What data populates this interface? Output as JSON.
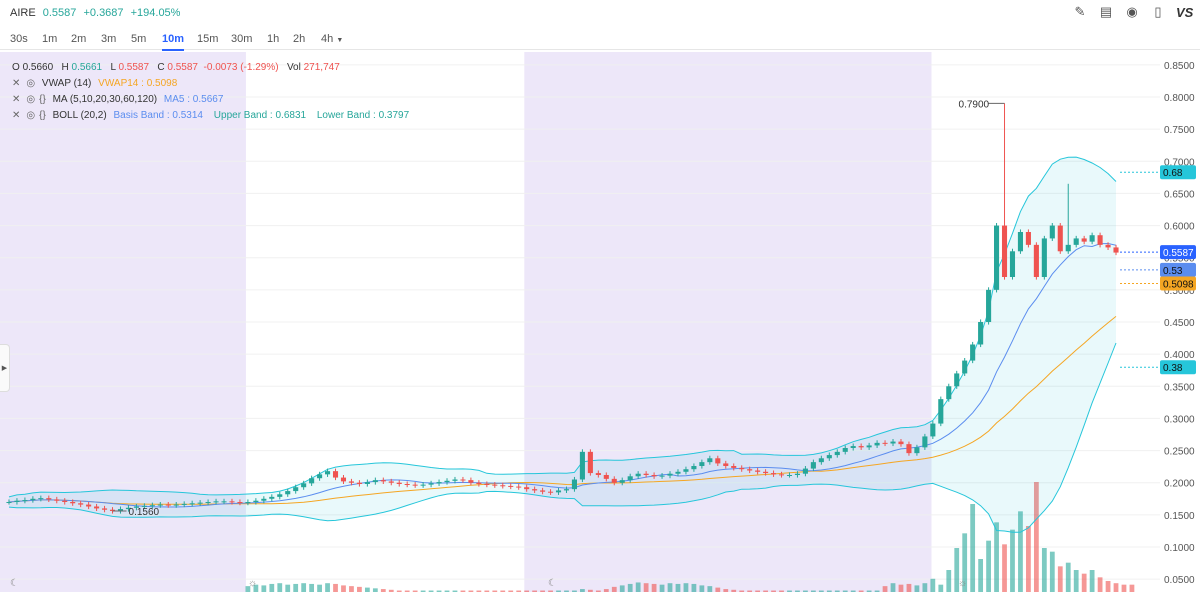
{
  "header": {
    "symbol": "AIRE",
    "price": "0.5587",
    "change": "+0.3687",
    "change_pct": "+194.05%",
    "icons": [
      "pencil-icon",
      "chart-icon",
      "idea-bulb-icon",
      "candles-icon",
      "compare-vs-icon"
    ],
    "vs_label": "VS"
  },
  "intervals": [
    "30s",
    "1m",
    "2m",
    "3m",
    "5m",
    "10m",
    "15m",
    "30m",
    "1h",
    "2h",
    "4h"
  ],
  "active_interval": "10m",
  "legend": {
    "ohlc": {
      "o_label": "O",
      "o": "0.5660",
      "h_label": "H",
      "h": "0.5661",
      "l_label": "L",
      "l": "0.5587",
      "c_label": "C",
      "c": "0.5587",
      "chg": "-0.0073 (-1.29%)",
      "vol_label": "Vol",
      "vol": "271,747"
    },
    "vwap": {
      "name": "VWAP (14)",
      "value": "VWAP14 : 0.5098"
    },
    "ma": {
      "name": "MA (5,10,20,30,60,120)",
      "value": "MA5 : 0.5667"
    },
    "boll": {
      "name": "BOLL (20,2)",
      "basis": "Basis Band : 0.5314",
      "upper": "Upper Band : 0.6831",
      "lower": "Lower Band : 0.3797"
    }
  },
  "price_scale": [
    "0.8500",
    "0.8000",
    "0.7500",
    "0.7000",
    "0.6500",
    "0.6000",
    "0.5500",
    "0.5000",
    "0.4500",
    "0.4000",
    "0.3500",
    "0.3000",
    "0.2500",
    "0.2000",
    "0.1500",
    "0.1000",
    "0.0500"
  ],
  "tags": {
    "upper": "0.68",
    "price": "0.5587",
    "basis": "0.53",
    "vwap": "0.5098",
    "lower": "0.38"
  },
  "annotations": {
    "high": "0.7900",
    "low": "0.1560"
  },
  "colors": {
    "up": "#26a69a",
    "down": "#ef5350",
    "accent": "#2962ff",
    "boll": "#26c6da",
    "vwap": "#f5a623",
    "ma": "#5b8def",
    "session": "#ede7f9"
  },
  "chart_data": {
    "type": "candlestick",
    "ylim": [
      0.03,
      0.87
    ],
    "sessions": [
      [
        0,
        0.212
      ],
      [
        0.452,
        0.803
      ]
    ],
    "closes": [
      0.17,
      0.172,
      0.173,
      0.175,
      0.176,
      0.174,
      0.172,
      0.17,
      0.168,
      0.166,
      0.163,
      0.16,
      0.158,
      0.156,
      0.159,
      0.161,
      0.163,
      0.164,
      0.165,
      0.166,
      0.165,
      0.166,
      0.167,
      0.168,
      0.169,
      0.17,
      0.171,
      0.171,
      0.17,
      0.169,
      0.17,
      0.172,
      0.175,
      0.178,
      0.182,
      0.187,
      0.193,
      0.199,
      0.207,
      0.213,
      0.218,
      0.208,
      0.202,
      0.2,
      0.198,
      0.201,
      0.204,
      0.202,
      0.2,
      0.198,
      0.197,
      0.196,
      0.197,
      0.199,
      0.201,
      0.203,
      0.205,
      0.204,
      0.2,
      0.198,
      0.197,
      0.196,
      0.195,
      0.194,
      0.193,
      0.19,
      0.188,
      0.186,
      0.185,
      0.188,
      0.19,
      0.205,
      0.248,
      0.215,
      0.212,
      0.206,
      0.2,
      0.204,
      0.21,
      0.214,
      0.212,
      0.21,
      0.211,
      0.214,
      0.217,
      0.221,
      0.226,
      0.232,
      0.238,
      0.23,
      0.226,
      0.223,
      0.221,
      0.219,
      0.217,
      0.215,
      0.213,
      0.212,
      0.212,
      0.214,
      0.222,
      0.232,
      0.238,
      0.243,
      0.248,
      0.254,
      0.257,
      0.255,
      0.258,
      0.262,
      0.261,
      0.264,
      0.26,
      0.246,
      0.255,
      0.272,
      0.292,
      0.33,
      0.35,
      0.37,
      0.39,
      0.415,
      0.45,
      0.5,
      0.6,
      0.52,
      0.56,
      0.59,
      0.57,
      0.52,
      0.58,
      0.6,
      0.56,
      0.57,
      0.58,
      0.575,
      0.585,
      0.57,
      0.566,
      0.558
    ],
    "highs_extra": {
      "125": 0.79,
      "133": 0.665
    },
    "volume": [
      0,
      0,
      0,
      0,
      0,
      0,
      0,
      0,
      0,
      0,
      0,
      0,
      0,
      0,
      0,
      0,
      0,
      0,
      0,
      0,
      0,
      0,
      0,
      0,
      0,
      0,
      0,
      0,
      0,
      0,
      0.008,
      0.01,
      0.009,
      0.011,
      0.012,
      0.01,
      0.011,
      0.012,
      0.011,
      0.01,
      0.012,
      0.011,
      0.009,
      0.008,
      0.007,
      0.006,
      0.005,
      0.004,
      0.003,
      0.002,
      0.002,
      0.002,
      0.002,
      0.002,
      0.002,
      0.002,
      0.002,
      0.002,
      0.002,
      0.002,
      0.002,
      0.002,
      0.002,
      0.002,
      0.002,
      0.002,
      0.002,
      0.002,
      0.002,
      0.002,
      0.002,
      0.002,
      0.004,
      0.003,
      0.002,
      0.004,
      0.007,
      0.009,
      0.011,
      0.013,
      0.012,
      0.011,
      0.01,
      0.012,
      0.011,
      0.012,
      0.011,
      0.009,
      0.008,
      0.006,
      0.004,
      0.003,
      0.002,
      0.002,
      0.002,
      0.002,
      0.002,
      0.002,
      0.002,
      0.002,
      0.002,
      0.002,
      0.002,
      0.002,
      0.002,
      0.002,
      0.002,
      0.002,
      0.002,
      0.002,
      0.008,
      0.012,
      0.01,
      0.011,
      0.009,
      0.012,
      0.018,
      0.01,
      0.03,
      0.06,
      0.08,
      0.12,
      0.045,
      0.07,
      0.095,
      0.065,
      0.085,
      0.11,
      0.09,
      0.15,
      0.06,
      0.055,
      0.035,
      0.04,
      0.03,
      0.025,
      0.03,
      0.02,
      0.015,
      0.012,
      0.01,
      0.01
    ]
  }
}
